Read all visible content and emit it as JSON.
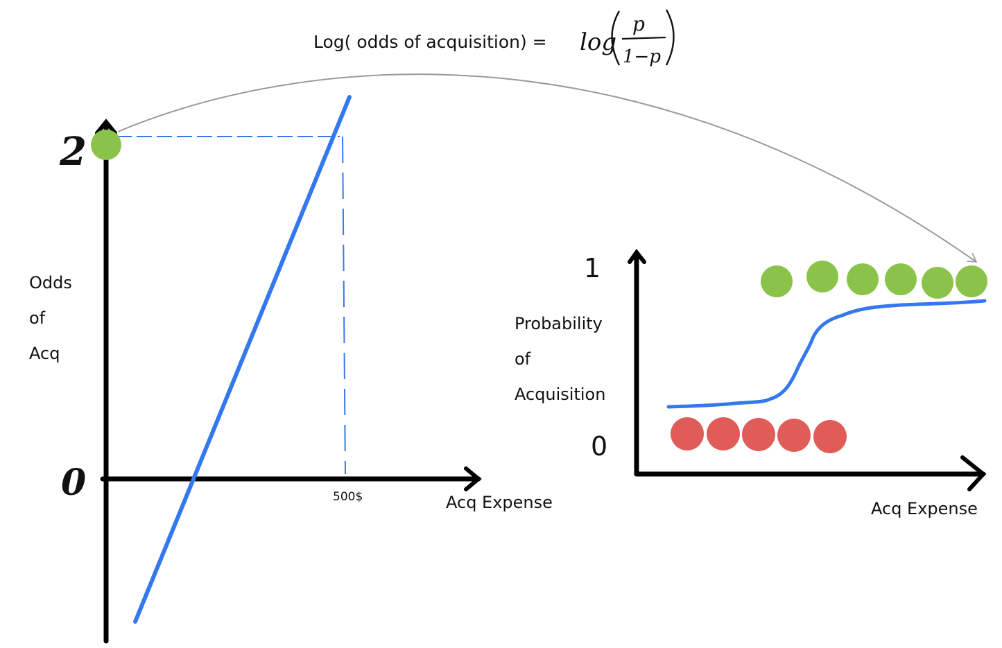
{
  "title": {
    "text": "Log( odds of acquisition) =",
    "formula_fn": "log",
    "formula_num": "p",
    "formula_den": "1−p"
  },
  "left_chart": {
    "y_label_lines": [
      "Odds",
      "of",
      "Acq"
    ],
    "x_label": "Acq Expense",
    "y_tick_top": "2",
    "y_tick_zero": "0",
    "x_tick": "500$",
    "line_color": "#3478f0",
    "point_color": "#8bc34a"
  },
  "right_chart": {
    "y_label_lines": [
      "Probability",
      "of",
      "Acquisition"
    ],
    "x_label": "Acq Expense",
    "y_tick_top": "1",
    "y_tick_zero": "0",
    "success_color": "#8bc34a",
    "failure_color": "#e05c58",
    "curve_color": "#3478f0",
    "success_count": 6,
    "failure_count": 5
  },
  "arrow_color": "#9a9a9a"
}
